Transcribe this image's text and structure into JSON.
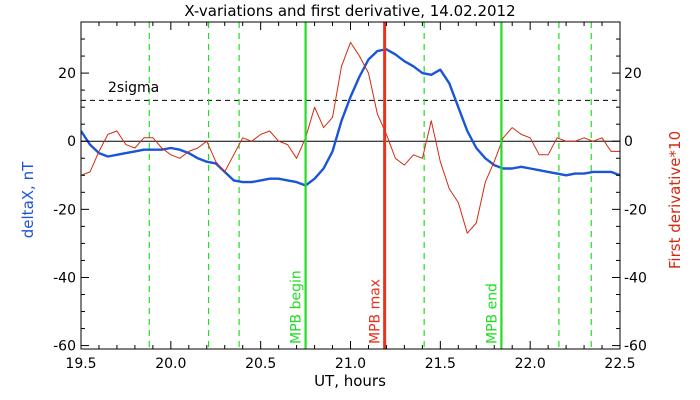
{
  "chart_data": {
    "type": "line",
    "title": "X-variations and first derivative, 14.02.2012",
    "xlabel": "UT, hours",
    "ylabel_left": "deltaX, nT",
    "ylabel_right": "First derivative*10",
    "xlim": [
      19.5,
      22.5
    ],
    "ylim": [
      -61,
      35
    ],
    "x_ticks": [
      "19.5",
      "20.0",
      "20.5",
      "21.0",
      "21.5",
      "22.0",
      "22.5"
    ],
    "y_ticks": [
      "-60",
      "-40",
      "-20",
      "0",
      "20"
    ],
    "colors": {
      "deltaX": "#1a55d6",
      "derivative": "#d42a10",
      "markers": "#22dd22",
      "max_marker": "#e8321e",
      "axes": "#000000"
    },
    "threshold": {
      "label": "2sigma",
      "value": 12
    },
    "zero_line": 0,
    "dashed_markers": [
      19.88,
      20.21,
      20.38,
      21.41,
      22.16,
      22.34
    ],
    "solid_markers": [
      {
        "x": 20.75,
        "label": "MPB begin",
        "color": "#22dd22"
      },
      {
        "x": 21.19,
        "label": "MPB max",
        "color": "#e8321e"
      },
      {
        "x": 21.84,
        "label": "MPB end",
        "color": "#22dd22"
      }
    ],
    "series": [
      {
        "name": "deltaX",
        "axis": "left",
        "x": [
          19.5,
          19.55,
          19.6,
          19.65,
          19.7,
          19.75,
          19.8,
          19.85,
          19.9,
          19.95,
          20.0,
          20.05,
          20.1,
          20.15,
          20.2,
          20.25,
          20.3,
          20.35,
          20.4,
          20.45,
          20.5,
          20.55,
          20.6,
          20.65,
          20.7,
          20.75,
          20.8,
          20.85,
          20.9,
          20.95,
          21.0,
          21.05,
          21.1,
          21.15,
          21.2,
          21.25,
          21.3,
          21.35,
          21.4,
          21.45,
          21.5,
          21.55,
          21.6,
          21.65,
          21.7,
          21.75,
          21.8,
          21.85,
          21.9,
          21.95,
          22.0,
          22.05,
          22.1,
          22.15,
          22.2,
          22.25,
          22.3,
          22.35,
          22.4,
          22.45,
          22.5
        ],
        "y": [
          3,
          -1,
          -3.5,
          -4.5,
          -4,
          -3.5,
          -3,
          -2.5,
          -2.5,
          -2.5,
          -2,
          -2.5,
          -3.5,
          -5,
          -6,
          -6.5,
          -9,
          -11.5,
          -12,
          -12,
          -11.5,
          -11,
          -11,
          -11.5,
          -12,
          -13,
          -11,
          -8,
          -3,
          6,
          13,
          19,
          24,
          26.5,
          27,
          25.5,
          23.5,
          22,
          20,
          19.5,
          21,
          17,
          10,
          3,
          -2,
          -5,
          -7,
          -8,
          -8,
          -7.5,
          -8,
          -8.5,
          -9,
          -9.5,
          -10,
          -9.5,
          -9.5,
          -9,
          -9,
          -9,
          -10
        ]
      },
      {
        "name": "First derivative*10",
        "axis": "right",
        "x": [
          19.5,
          19.55,
          19.6,
          19.65,
          19.7,
          19.75,
          19.8,
          19.85,
          19.9,
          19.95,
          20.0,
          20.05,
          20.1,
          20.15,
          20.2,
          20.25,
          20.3,
          20.35,
          20.4,
          20.45,
          20.5,
          20.55,
          20.6,
          20.65,
          20.7,
          20.75,
          20.8,
          20.85,
          20.9,
          20.95,
          21.0,
          21.05,
          21.1,
          21.15,
          21.2,
          21.25,
          21.3,
          21.35,
          21.4,
          21.45,
          21.5,
          21.55,
          21.6,
          21.65,
          21.7,
          21.75,
          21.8,
          21.85,
          21.9,
          21.95,
          22.0,
          22.05,
          22.1,
          22.15,
          22.2,
          22.25,
          22.3,
          22.35,
          22.4,
          22.45,
          22.5
        ],
        "y": [
          -10,
          -9,
          -3,
          2,
          3,
          -1,
          -2,
          1,
          1,
          -2,
          -4,
          -5,
          -3,
          -2,
          0,
          -6,
          -9,
          -4,
          1,
          0,
          2,
          3,
          0,
          -1,
          -5,
          1,
          10,
          4,
          7,
          22,
          29,
          25,
          20,
          8,
          2,
          -5,
          -7,
          -4,
          -5,
          6,
          -6,
          -14,
          -18,
          -27,
          -24,
          -12,
          -6,
          1,
          4,
          2,
          1,
          -4,
          -4,
          1,
          0,
          0,
          1,
          0,
          1,
          -3,
          -3
        ]
      }
    ]
  }
}
